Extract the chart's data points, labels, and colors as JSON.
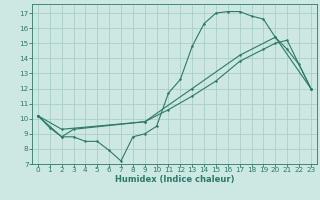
{
  "xlabel": "Humidex (Indice chaleur)",
  "xlim": [
    -0.5,
    23.5
  ],
  "ylim": [
    7,
    17.6
  ],
  "xticks": [
    0,
    1,
    2,
    3,
    4,
    5,
    6,
    7,
    8,
    9,
    10,
    11,
    12,
    13,
    14,
    15,
    16,
    17,
    18,
    19,
    20,
    21,
    22,
    23
  ],
  "yticks": [
    7,
    8,
    9,
    10,
    11,
    12,
    13,
    14,
    15,
    16,
    17
  ],
  "bg_color": "#cde8e2",
  "line_color": "#2a7a6a",
  "grid_color": "#aacfc8",
  "line1_x": [
    0,
    1,
    2,
    3,
    4,
    5,
    6,
    7,
    8,
    9,
    10,
    11,
    12,
    13,
    14,
    15,
    16,
    17,
    18,
    19,
    20,
    21,
    22,
    23
  ],
  "line1_y": [
    10.2,
    9.4,
    8.8,
    8.8,
    8.5,
    8.5,
    7.9,
    7.2,
    8.8,
    9.0,
    9.5,
    11.7,
    12.6,
    14.8,
    16.3,
    17.0,
    17.1,
    17.1,
    16.8,
    16.6,
    15.4,
    14.6,
    13.6,
    12.0
  ],
  "line2_x": [
    0,
    2,
    3,
    9,
    11,
    13,
    15,
    17,
    19,
    20,
    21,
    23
  ],
  "line2_y": [
    10.2,
    8.8,
    9.3,
    9.8,
    10.6,
    11.5,
    12.5,
    13.8,
    14.6,
    15.0,
    15.2,
    12.0
  ],
  "line3_x": [
    0,
    2,
    9,
    13,
    17,
    20,
    23
  ],
  "line3_y": [
    10.2,
    9.3,
    9.8,
    12.0,
    14.2,
    15.4,
    12.0
  ]
}
